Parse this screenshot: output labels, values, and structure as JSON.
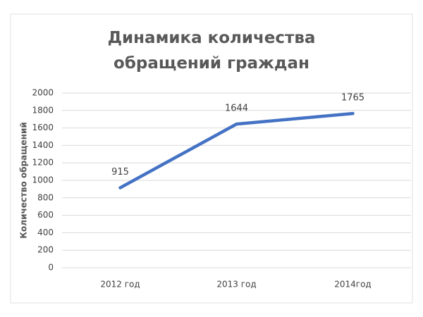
{
  "chart_data": {
    "type": "line",
    "title": "Динамика количества обращений граждан",
    "y_label": "Количество обращений",
    "categories": [
      "2012 год",
      "2013 год",
      "2014год"
    ],
    "values": [
      915,
      1644,
      1765
    ],
    "color": "#4472c4",
    "ylim": [
      0,
      2000
    ],
    "yticks": [
      0,
      200,
      400,
      600,
      800,
      1000,
      1200,
      1400,
      1600,
      1800,
      2000
    ],
    "grid": true
  }
}
